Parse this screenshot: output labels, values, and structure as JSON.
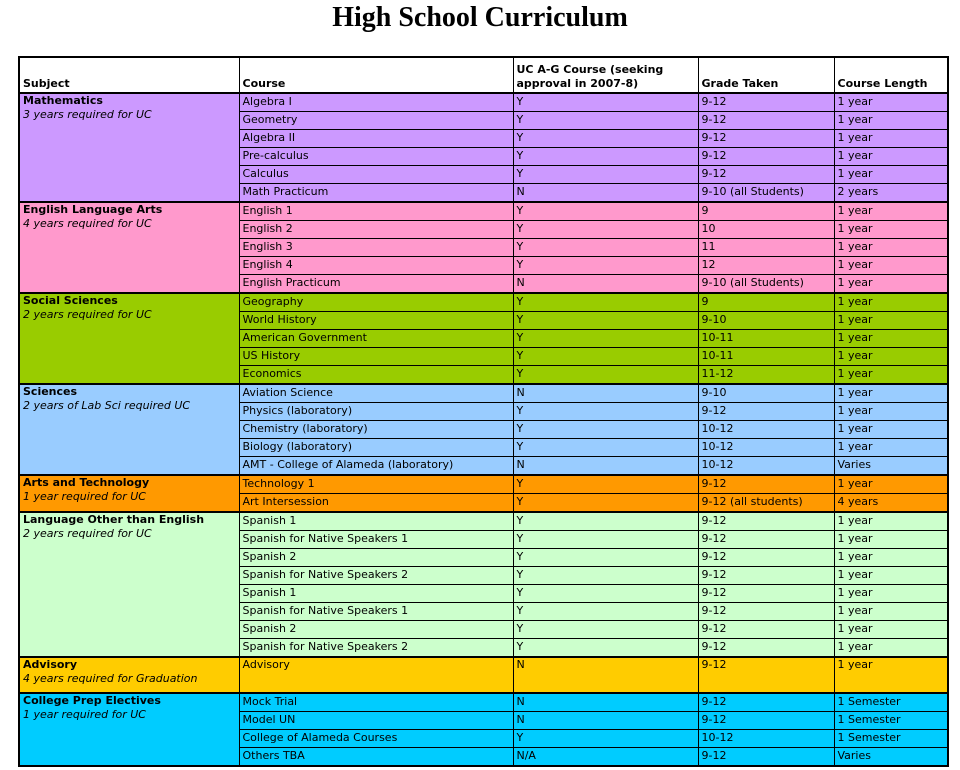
{
  "title": "High School Curriculum",
  "table": {
    "headers": [
      "Subject",
      "Course",
      "UC A-G Course (seeking approval in 2007-8)",
      "Grade Taken",
      "Course Length"
    ],
    "sections": [
      {
        "id": "mathematics",
        "subject": "Mathematics",
        "note": "3 years required for UC",
        "color": "#CC99FF",
        "rows": [
          {
            "course": "Algebra I",
            "uc": "Y",
            "grade": "9-12",
            "length": "1 year"
          },
          {
            "course": "Geometry",
            "uc": "Y",
            "grade": "9-12",
            "length": "1 year"
          },
          {
            "course": "Algebra II",
            "uc": "Y",
            "grade": "9-12",
            "length": "1 year"
          },
          {
            "course": "Pre-calculus",
            "uc": "Y",
            "grade": "9-12",
            "length": "1 year"
          },
          {
            "course": "Calculus",
            "uc": "Y",
            "grade": "9-12",
            "length": "1 year"
          },
          {
            "course": "Math Practicum",
            "uc": "N",
            "grade": "9-10 (all Students)",
            "length": "2 years"
          }
        ]
      },
      {
        "id": "english-language-arts",
        "subject": "English Language Arts",
        "note": "4 years required for UC",
        "color": "#FF99CC",
        "rows": [
          {
            "course": "English 1",
            "uc": "Y",
            "grade": "9",
            "length": "1 year"
          },
          {
            "course": "English 2",
            "uc": "Y",
            "grade": "10",
            "length": "1 year"
          },
          {
            "course": "English 3",
            "uc": "Y",
            "grade": "11",
            "length": "1 year"
          },
          {
            "course": "English 4",
            "uc": "Y",
            "grade": "12",
            "length": "1 year"
          },
          {
            "course": "English Practicum",
            "uc": "N",
            "grade": "9-10 (all Students)",
            "length": "1 year"
          }
        ]
      },
      {
        "id": "social-sciences",
        "subject": "Social Sciences",
        "note": "2 years required for UC",
        "color": "#99CC00",
        "rows": [
          {
            "course": "Geography",
            "uc": "Y",
            "grade": "9",
            "length": "1 year"
          },
          {
            "course": "World History",
            "uc": "Y",
            "grade": "9-10",
            "length": "1 year"
          },
          {
            "course": "American Government",
            "uc": "Y",
            "grade": "10-11",
            "length": "1 year"
          },
          {
            "course": "US History",
            "uc": "Y",
            "grade": "10-11",
            "length": "1 year"
          },
          {
            "course": "Economics",
            "uc": "Y",
            "grade": "11-12",
            "length": "1 year"
          }
        ]
      },
      {
        "id": "sciences",
        "subject": "Sciences",
        "note": "2 years of Lab Sci required UC",
        "color": "#99CCFF",
        "rows": [
          {
            "course": "Aviation Science",
            "uc": "N",
            "grade": "9-10",
            "length": "1 year"
          },
          {
            "course": "Physics (laboratory)",
            "uc": "Y",
            "grade": "9-12",
            "length": "1 year"
          },
          {
            "course": "Chemistry (laboratory)",
            "uc": "Y",
            "grade": "10-12",
            "length": "1 year"
          },
          {
            "course": "Biology (laboratory)",
            "uc": "Y",
            "grade": "10-12",
            "length": "1 year"
          },
          {
            "course": "AMT - College of Alameda (laboratory)",
            "uc": "N",
            "grade": "10-12",
            "length": "Varies"
          }
        ]
      },
      {
        "id": "arts-and-technology",
        "subject": "Arts and Technology",
        "note": "1 year required for UC",
        "color": "#FF9900",
        "rows": [
          {
            "course": "Technology 1",
            "uc": "Y",
            "grade": "9-12",
            "length": "1 year"
          },
          {
            "course": "Art Intersession",
            "uc": "Y",
            "grade": "9-12 (all students)",
            "length": "4 years"
          }
        ]
      },
      {
        "id": "language-other-than-english",
        "subject": "Language Other than English",
        "note": "2 years required for UC",
        "color": "#CCFFCC",
        "rows": [
          {
            "course": "Spanish 1",
            "uc": "Y",
            "grade": "9-12",
            "length": "1 year"
          },
          {
            "course": "Spanish for Native Speakers 1",
            "uc": "Y",
            "grade": "9-12",
            "length": "1 year"
          },
          {
            "course": "Spanish 2",
            "uc": "Y",
            "grade": "9-12",
            "length": "1 year"
          },
          {
            "course": "Spanish for Native Speakers 2",
            "uc": "Y",
            "grade": "9-12",
            "length": "1 year"
          },
          {
            "course": "Spanish 1",
            "uc": "Y",
            "grade": "9-12",
            "length": "1 year"
          },
          {
            "course": "Spanish for Native Speakers 1",
            "uc": "Y",
            "grade": "9-12",
            "length": "1 year"
          },
          {
            "course": "Spanish 2",
            "uc": "Y",
            "grade": "9-12",
            "length": "1 year"
          },
          {
            "course": "Spanish for Native Speakers 2",
            "uc": "Y",
            "grade": "9-12",
            "length": "1 year"
          }
        ]
      },
      {
        "id": "advisory",
        "subject": "Advisory",
        "note": "4 years required for Graduation",
        "color": "#FFCC00",
        "rows": [
          {
            "course": "Advisory",
            "uc": "N",
            "grade": "9-12",
            "length": "1 year"
          }
        ]
      },
      {
        "id": "college-prep-electives",
        "subject": "College Prep Electives",
        "note": "1 year required for UC",
        "color": "#00CCFF",
        "rows": [
          {
            "course": "Mock Trial",
            "uc": "N",
            "grade": "9-12",
            "length": "1 Semester"
          },
          {
            "course": "Model UN",
            "uc": "N",
            "grade": "9-12",
            "length": "1 Semester"
          },
          {
            "course": "College of Alameda Courses",
            "uc": "Y",
            "grade": "10-12",
            "length": "1 Semester"
          },
          {
            "course": "Others TBA",
            "uc": "N/A",
            "grade": "9-12",
            "length": "Varies"
          }
        ]
      }
    ]
  }
}
